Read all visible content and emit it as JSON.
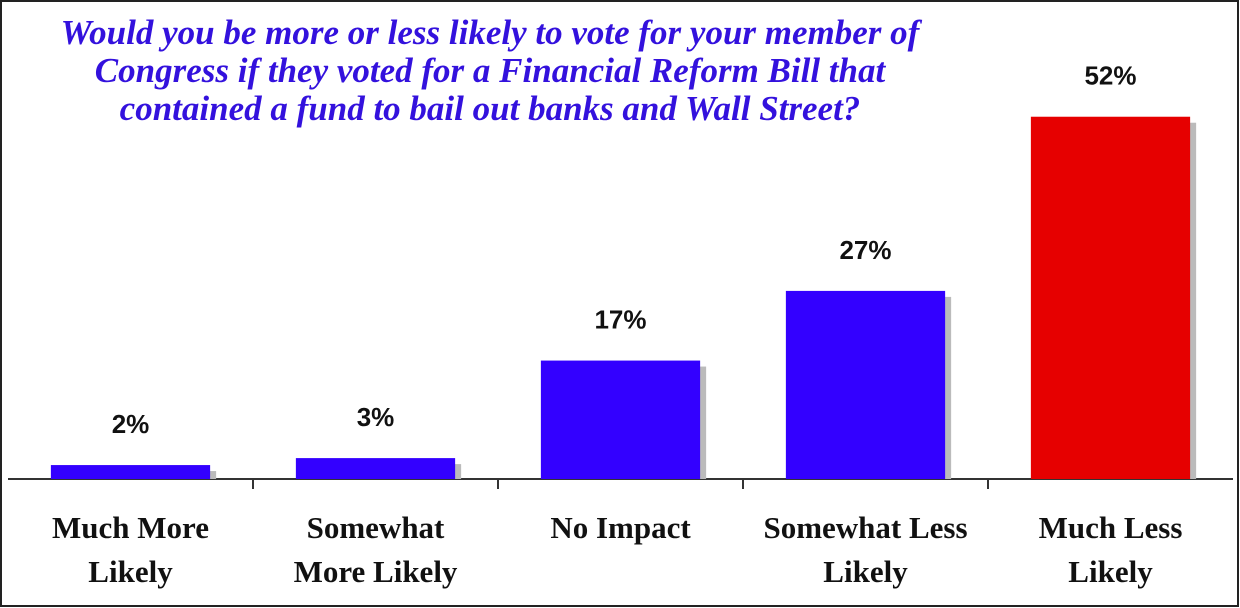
{
  "chart_data": {
    "type": "bar",
    "title": "Would you be more or less likely to vote for your member of Congress if they voted for a Financial Reform Bill that contained a fund to bail out banks and Wall Street?",
    "categories": [
      "Much More Likely",
      "Somewhat More Likely",
      "No Impact",
      "Somewhat Less Likely",
      "Much Less Likely"
    ],
    "values": [
      2,
      3,
      17,
      27,
      52
    ],
    "value_labels": [
      "2%",
      "3%",
      "17%",
      "27%",
      "52%"
    ],
    "colors": [
      "#3300ff",
      "#3300ff",
      "#3300ff",
      "#3300ff",
      "#e60000"
    ],
    "ylim": [
      0,
      60
    ]
  }
}
